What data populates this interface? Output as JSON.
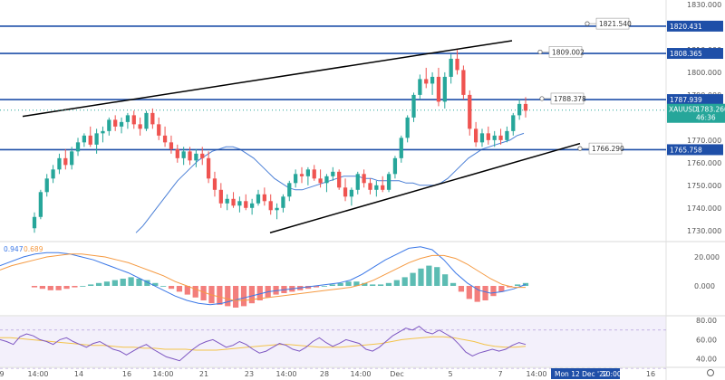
{
  "chart_data": {
    "type": "candlestick",
    "symbol": "XAUUSD",
    "price_tag": {
      "value": "1783.260",
      "countdown": "46:36"
    },
    "y_axis_ticks": [
      "1830.000",
      "1820.000",
      "1810.000",
      "1800.000",
      "1790.000",
      "1780.000",
      "1770.000",
      "1760.000",
      "1750.000",
      "1740.000",
      "1730.000"
    ],
    "ylim": [
      1725.5,
      1832
    ],
    "x_axis_ticks": [
      "9",
      "14:00",
      "14",
      "16",
      "14:00",
      "21",
      "23",
      "14:00",
      "28",
      "14:00",
      "Dec",
      "5",
      "7",
      "14:00",
      "14",
      "16"
    ],
    "current_date_label": "Mon 12 Dec '22",
    "current_time_label": "10:00",
    "colors": {
      "up": "#26a69a",
      "down": "#ef5350",
      "level": "#1e4fa8",
      "trend": "#000000",
      "ma": "#4a7fd6"
    },
    "horizontal_levels": [
      {
        "label": "1820.431",
        "value": 1820.431
      },
      {
        "label": "1808.365",
        "value": 1808.365
      },
      {
        "label": "1787.939",
        "value": 1787.939
      },
      {
        "label": "1765.758",
        "value": 1765.758
      }
    ],
    "annotations": [
      {
        "text": "1821.540",
        "value": 1821.54
      },
      {
        "text": "1809.002",
        "value": 1809.002
      },
      {
        "text": "1788.378",
        "value": 1788.378
      },
      {
        "text": "1766.290",
        "value": 1766.29
      }
    ],
    "candles_ohlc": [
      [
        1731,
        1738,
        1729,
        1736
      ],
      [
        1736,
        1748,
        1735,
        1747
      ],
      [
        1747,
        1755,
        1745,
        1753
      ],
      [
        1753,
        1759,
        1751,
        1757
      ],
      [
        1757,
        1764,
        1755,
        1762
      ],
      [
        1762,
        1766,
        1757,
        1759
      ],
      [
        1759,
        1767,
        1757,
        1765
      ],
      [
        1765,
        1771,
        1763,
        1769
      ],
      [
        1769,
        1773,
        1767,
        1772
      ],
      [
        1772,
        1776,
        1767,
        1768
      ],
      [
        1768,
        1775,
        1764,
        1773
      ],
      [
        1773,
        1776,
        1769,
        1774
      ],
      [
        1774,
        1780,
        1772,
        1779
      ],
      [
        1779,
        1781,
        1774,
        1776
      ],
      [
        1776,
        1780,
        1773,
        1778
      ],
      [
        1778,
        1782,
        1775,
        1781
      ],
      [
        1781,
        1783,
        1775,
        1777
      ],
      [
        1777,
        1780,
        1772,
        1775
      ],
      [
        1775,
        1783,
        1774,
        1782
      ],
      [
        1782,
        1784,
        1775,
        1777
      ],
      [
        1777,
        1780,
        1770,
        1772
      ],
      [
        1772,
        1776,
        1767,
        1769
      ],
      [
        1769,
        1772,
        1764,
        1766
      ],
      [
        1766,
        1768,
        1760,
        1762
      ],
      [
        1762,
        1767,
        1759,
        1765
      ],
      [
        1765,
        1767,
        1759,
        1761
      ],
      [
        1761,
        1766,
        1758,
        1764
      ],
      [
        1764,
        1767,
        1759,
        1762
      ],
      [
        1762,
        1765,
        1751,
        1753
      ],
      [
        1753,
        1756,
        1745,
        1748
      ],
      [
        1748,
        1751,
        1740,
        1742
      ],
      [
        1742,
        1746,
        1739,
        1744
      ],
      [
        1744,
        1747,
        1740,
        1741
      ],
      [
        1741,
        1745,
        1738,
        1743
      ],
      [
        1743,
        1746,
        1739,
        1740
      ],
      [
        1740,
        1744,
        1737,
        1742
      ],
      [
        1742,
        1748,
        1741,
        1746
      ],
      [
        1746,
        1749,
        1741,
        1743
      ],
      [
        1743,
        1746,
        1737,
        1739
      ],
      [
        1739,
        1742,
        1735,
        1740
      ],
      [
        1740,
        1746,
        1738,
        1745
      ],
      [
        1745,
        1752,
        1743,
        1751
      ],
      [
        1751,
        1757,
        1749,
        1755
      ],
      [
        1755,
        1758,
        1751,
        1754
      ],
      [
        1754,
        1758,
        1750,
        1757
      ],
      [
        1757,
        1759,
        1752,
        1753
      ],
      [
        1753,
        1757,
        1749,
        1751
      ],
      [
        1751,
        1755,
        1747,
        1754
      ],
      [
        1754,
        1758,
        1752,
        1756
      ],
      [
        1756,
        1757,
        1748,
        1749
      ],
      [
        1749,
        1753,
        1743,
        1745
      ],
      [
        1745,
        1749,
        1741,
        1748
      ],
      [
        1748,
        1756,
        1746,
        1755
      ],
      [
        1755,
        1757,
        1749,
        1751
      ],
      [
        1751,
        1753,
        1746,
        1748
      ],
      [
        1748,
        1752,
        1745,
        1750
      ],
      [
        1750,
        1754,
        1747,
        1748
      ],
      [
        1748,
        1756,
        1747,
        1755
      ],
      [
        1755,
        1763,
        1753,
        1762
      ],
      [
        1762,
        1772,
        1760,
        1771
      ],
      [
        1771,
        1781,
        1769,
        1780
      ],
      [
        1780,
        1791,
        1778,
        1790
      ],
      [
        1790,
        1799,
        1788,
        1797
      ],
      [
        1797,
        1802,
        1793,
        1795
      ],
      [
        1795,
        1800,
        1790,
        1798
      ],
      [
        1798,
        1802,
        1785,
        1787
      ],
      [
        1787,
        1800,
        1784,
        1798
      ],
      [
        1798,
        1808,
        1795,
        1806
      ],
      [
        1806,
        1810,
        1799,
        1801
      ],
      [
        1801,
        1803,
        1788,
        1790
      ],
      [
        1790,
        1792,
        1772,
        1775
      ],
      [
        1775,
        1778,
        1767,
        1769
      ],
      [
        1769,
        1775,
        1767,
        1773
      ],
      [
        1773,
        1776,
        1768,
        1770
      ],
      [
        1770,
        1774,
        1767,
        1772
      ],
      [
        1772,
        1775,
        1768,
        1770
      ],
      [
        1770,
        1776,
        1769,
        1774
      ],
      [
        1774,
        1782,
        1772,
        1781
      ],
      [
        1781,
        1788,
        1779,
        1786
      ],
      [
        1786,
        1789,
        1780,
        1783
      ]
    ],
    "ma_values": [
      1729,
      1732,
      1736,
      1740,
      1744,
      1748,
      1752,
      1755,
      1758,
      1761,
      1763,
      1765,
      1766,
      1767,
      1767,
      1766,
      1764,
      1762,
      1759,
      1756,
      1753,
      1751,
      1749,
      1748,
      1748,
      1749,
      1750,
      1751,
      1752,
      1753,
      1754,
      1754,
      1754,
      1753,
      1753,
      1752,
      1752,
      1752,
      1752,
      1751,
      1751,
      1750,
      1750,
      1750,
      1751,
      1753,
      1756,
      1759,
      1762,
      1764,
      1766,
      1767,
      1768,
      1769,
      1770,
      1772,
      1773
    ],
    "macd_label_values": [
      "0.947",
      "0.689"
    ],
    "macd_axis": [
      "20.000",
      "0.000"
    ],
    "macd_histogram": [
      -1,
      -2,
      -3,
      -3,
      -2,
      -1,
      0,
      1,
      2,
      3,
      4,
      5,
      6,
      5,
      4,
      2,
      0,
      -2,
      -4,
      -6,
      -8,
      -10,
      -12,
      -13,
      -14,
      -15,
      -14,
      -12,
      -10,
      -8,
      -6,
      -5,
      -4,
      -3,
      -2,
      -1,
      0,
      1,
      2,
      3,
      3,
      2,
      1,
      1,
      2,
      4,
      6,
      9,
      12,
      14,
      13,
      8,
      2,
      -4,
      -9,
      -11,
      -10,
      -7,
      -4,
      -1,
      1,
      2
    ],
    "macd_line": [
      14,
      17,
      20,
      22,
      23,
      23,
      22,
      20,
      18,
      15,
      12,
      9,
      5,
      1,
      -3,
      -7,
      -10,
      -12,
      -13,
      -12,
      -10,
      -8,
      -6,
      -4,
      -3,
      -2,
      -1,
      0,
      1,
      2,
      4,
      8,
      13,
      18,
      22,
      26,
      27,
      25,
      18,
      9,
      2,
      -3,
      -5,
      -4,
      -2,
      1
    ],
    "signal_line": [
      11,
      14,
      16,
      18,
      20,
      21,
      22,
      22,
      21,
      20,
      18,
      16,
      13,
      10,
      7,
      3,
      0,
      -3,
      -6,
      -8,
      -10,
      -10,
      -9,
      -8,
      -7,
      -6,
      -5,
      -4,
      -3,
      -2,
      -1,
      1,
      4,
      8,
      12,
      16,
      19,
      21,
      21,
      19,
      15,
      10,
      5,
      1,
      -1,
      -1
    ],
    "rsi_axis": [
      "80.00",
      "60.00",
      "40.00"
    ],
    "rsi_values": [
      60,
      58,
      55,
      63,
      66,
      64,
      60,
      58,
      55,
      60,
      62,
      58,
      55,
      52,
      56,
      58,
      54,
      50,
      48,
      44,
      48,
      52,
      55,
      50,
      46,
      42,
      40,
      38,
      44,
      50,
      55,
      58,
      60,
      56,
      52,
      54,
      58,
      55,
      50,
      46,
      48,
      52,
      56,
      54,
      50,
      48,
      52,
      58,
      62,
      57,
      53,
      56,
      60,
      58,
      56,
      50,
      48,
      52,
      58,
      64,
      68,
      72,
      70,
      74,
      68,
      66,
      70,
      66,
      62,
      55,
      47,
      43,
      46,
      48,
      50,
      48,
      50,
      54,
      57,
      55
    ],
    "rsi_ma_values": [
      62,
      62,
      61,
      60,
      59,
      58,
      57,
      56,
      55,
      54,
      54,
      53,
      52,
      52,
      51,
      51,
      50,
      50,
      50,
      49,
      49,
      49,
      50,
      51,
      52,
      53,
      54,
      55,
      55,
      54,
      53,
      52,
      52,
      52,
      53,
      54,
      55,
      56,
      58,
      60,
      61,
      62,
      63,
      63,
      62,
      60,
      58,
      55,
      53,
      52,
      52,
      53
    ]
  }
}
